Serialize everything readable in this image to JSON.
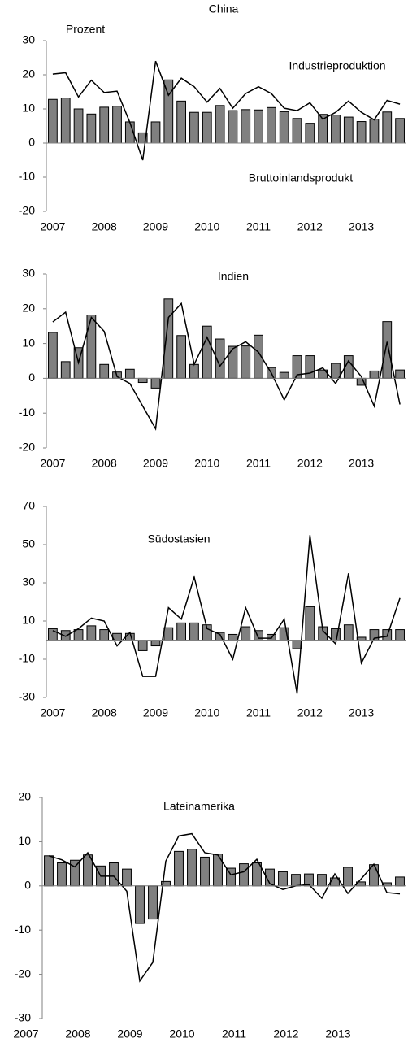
{
  "chart_data": [
    {
      "type": "combo",
      "title": "China",
      "ylabel": "Prozent",
      "categories": [
        "2007",
        null,
        null,
        null,
        "2008",
        null,
        null,
        null,
        "2009",
        null,
        null,
        null,
        "2010",
        null,
        null,
        null,
        "2011",
        null,
        null,
        null,
        "2012",
        null,
        null,
        null,
        "2013",
        null,
        null,
        null
      ],
      "ylim": [
        -20,
        30
      ],
      "yticks": [
        -20,
        -10,
        0,
        10,
        20,
        30
      ],
      "series": [
        {
          "name": "Bruttoinlandsprodukt",
          "type": "bar",
          "color": "#808080",
          "values": [
            12.8,
            13.2,
            10,
            8.5,
            10.5,
            10.8,
            6.2,
            3,
            6.2,
            18.5,
            12.3,
            9,
            9,
            11,
            9.5,
            9.8,
            9.7,
            10.4,
            9.2,
            7.2,
            5.8,
            8.4,
            8.2,
            7.6,
            6.3,
            7,
            9.1,
            7.2
          ]
        },
        {
          "name": "Industrieproduktion",
          "type": "line",
          "color": "#000000",
          "values": [
            20.2,
            20.6,
            13.5,
            18.4,
            14.8,
            15.2,
            6,
            -5,
            24,
            14,
            19,
            16.5,
            12,
            16,
            10.2,
            14.5,
            16.5,
            14.5,
            10.2,
            9.5,
            11.8,
            7,
            9,
            12.3,
            9,
            6.8,
            12.5,
            11.4
          ]
        }
      ]
    },
    {
      "type": "combo",
      "title": "Indien",
      "categories": [
        "2007",
        null,
        null,
        null,
        "2008",
        null,
        null,
        null,
        "2009",
        null,
        null,
        null,
        "2010",
        null,
        null,
        null,
        "2011",
        null,
        null,
        null,
        "2012",
        null,
        null,
        null,
        "2013",
        null,
        null,
        null
      ],
      "ylim": [
        -20,
        30
      ],
      "yticks": [
        -20,
        -10,
        0,
        10,
        20,
        30
      ],
      "series": [
        {
          "type": "bar",
          "color": "#808080",
          "values": [
            13.2,
            4.8,
            8.8,
            18.2,
            4,
            1.8,
            2.6,
            -1.2,
            -2.8,
            22.8,
            12.3,
            4,
            15,
            11.3,
            9.2,
            9.3,
            12.4,
            3.1,
            1.7,
            6.5,
            6.5,
            2.4,
            4.3,
            6.5,
            -2,
            2.1,
            16.3,
            2.4
          ]
        },
        {
          "type": "line",
          "color": "#000000",
          "values": [
            16.2,
            19,
            4.5,
            17.5,
            13.5,
            0.5,
            -1.5,
            -8,
            -14.5,
            17.5,
            21.5,
            4,
            11.8,
            3.5,
            8.5,
            10.5,
            7.5,
            1.5,
            -6.2,
            1,
            1.5,
            3,
            -1.5,
            5,
            0.5,
            -8,
            10.5,
            -7.5
          ]
        }
      ]
    },
    {
      "type": "combo",
      "title": "Südostasien",
      "categories": [
        "2007",
        null,
        null,
        null,
        "2008",
        null,
        null,
        null,
        "2009",
        null,
        null,
        null,
        "2010",
        null,
        null,
        null,
        "2011",
        null,
        null,
        null,
        "2012",
        null,
        null,
        null,
        "2013",
        null,
        null,
        null
      ],
      "ylim": [
        -30,
        70
      ],
      "yticks": [
        -30,
        -10,
        10,
        30,
        50,
        70
      ],
      "series": [
        {
          "type": "bar",
          "color": "#808080",
          "values": [
            6,
            5,
            5.5,
            7.5,
            5.5,
            3.5,
            3.5,
            -5.5,
            -3,
            6.5,
            9,
            9,
            8,
            4,
            3,
            7,
            5,
            3,
            6.5,
            -4.5,
            17.5,
            7,
            6,
            8,
            1.5,
            5.5,
            5.5,
            5.5
          ]
        },
        {
          "type": "line",
          "color": "#000000",
          "values": [
            5,
            2,
            6,
            11.5,
            10,
            -3,
            4,
            -19,
            -19,
            17,
            11,
            33,
            6,
            3,
            -10,
            17,
            1,
            1,
            11,
            -28,
            55,
            5,
            -2,
            35,
            -12,
            1,
            2,
            22
          ]
        }
      ]
    },
    {
      "type": "combo",
      "title": "Lateinamerika",
      "categories": [
        "2007",
        null,
        null,
        null,
        "2008",
        null,
        null,
        null,
        "2009",
        null,
        null,
        null,
        "2010",
        null,
        null,
        null,
        "2011",
        null,
        null,
        null,
        "2012",
        null,
        null,
        null,
        "2013",
        null,
        null,
        null
      ],
      "ylim": [
        -30,
        20
      ],
      "yticks": [
        -30,
        -20,
        -10,
        0,
        10,
        20
      ],
      "series": [
        {
          "type": "bar",
          "color": "#808080",
          "values": [
            6.8,
            5.2,
            5.8,
            7,
            4.5,
            5.2,
            3.8,
            -8.5,
            -7.5,
            1,
            7.8,
            8.3,
            6.5,
            7.2,
            4,
            5,
            5.2,
            3.8,
            3.2,
            2.6,
            2.7,
            2.6,
            1.8,
            4.2,
            0.9,
            4.8,
            0.7,
            2
          ]
        },
        {
          "type": "line",
          "color": "#000000",
          "values": [
            6.8,
            5.9,
            4.3,
            7.5,
            2.2,
            2.2,
            -1.2,
            -21.5,
            -17.3,
            5.6,
            11.3,
            11.8,
            7.5,
            7,
            2.5,
            3.2,
            6,
            0.5,
            -0.8,
            0,
            0.3,
            -2.8,
            2.7,
            -1.7,
            1.5,
            4.9,
            -1.5,
            -1.8
          ]
        }
      ]
    }
  ]
}
